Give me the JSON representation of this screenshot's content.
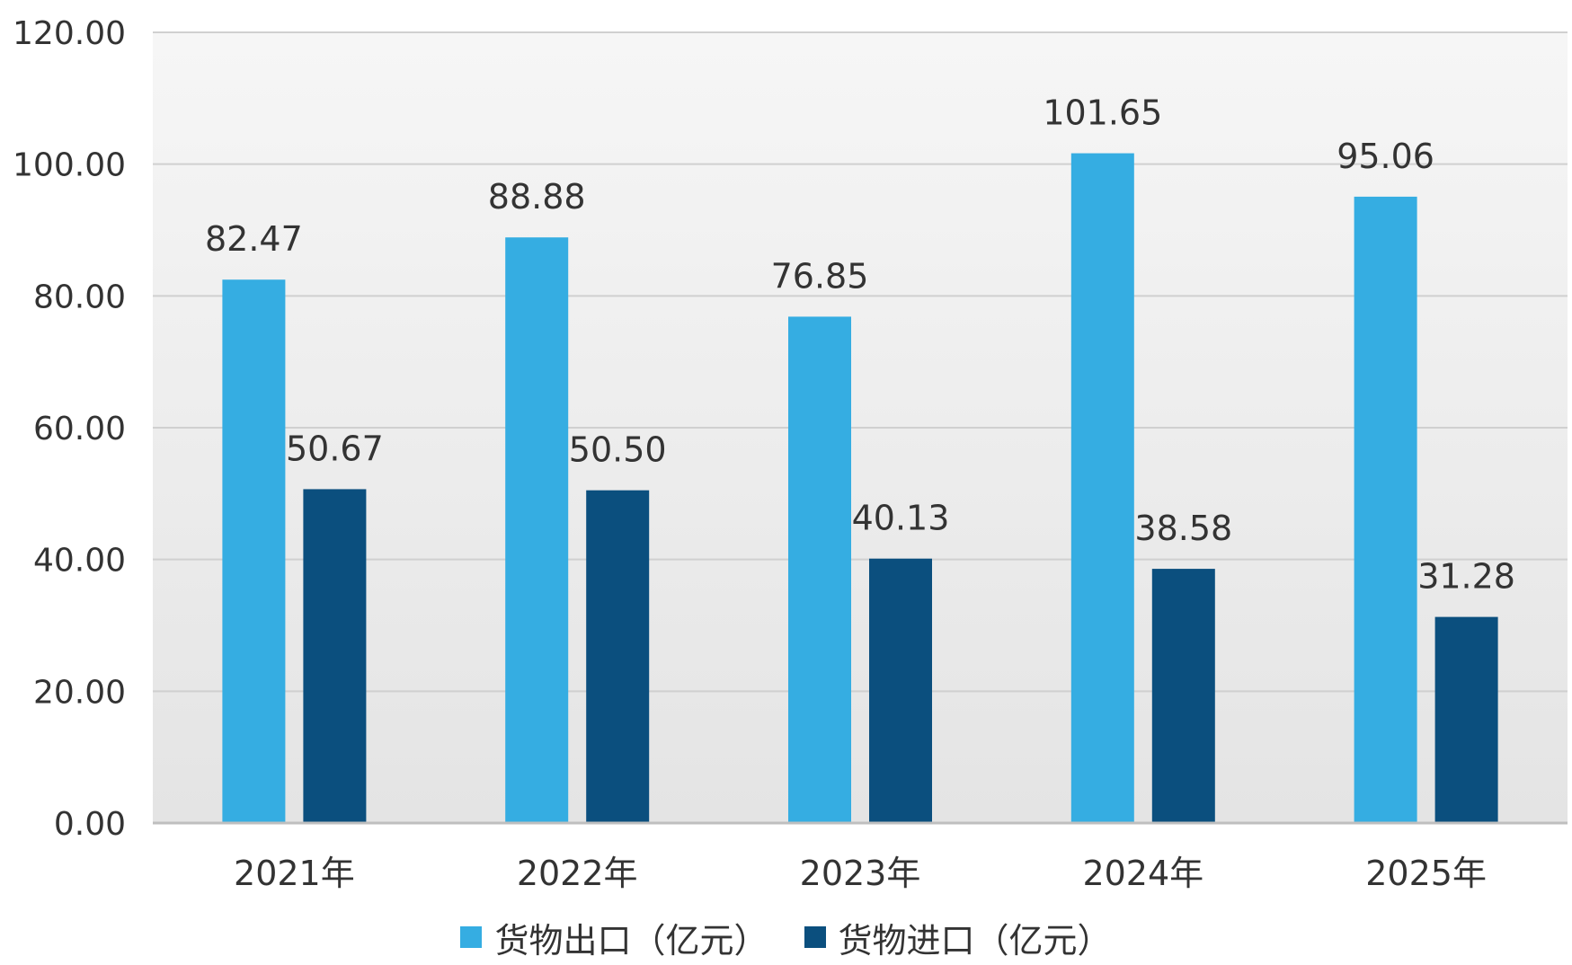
{
  "chart_data": {
    "type": "bar",
    "categories": [
      "2021年",
      "2022年",
      "2023年",
      "2024年",
      "2025年"
    ],
    "series": [
      {
        "name": "货物出口（亿元）",
        "color": "#35ADE2",
        "values": [
          82.47,
          88.88,
          76.85,
          101.65,
          95.06
        ]
      },
      {
        "name": "货物进口（亿元）",
        "color": "#0B4F7E",
        "values": [
          50.67,
          50.5,
          40.13,
          38.58,
          31.28
        ]
      }
    ],
    "data_labels": [
      [
        "82.47",
        "88.88",
        "76.85",
        "101.65",
        "95.06"
      ],
      [
        "50.67",
        "50.50",
        "40.13",
        "38.58",
        "31.28"
      ]
    ],
    "y_ticks": [
      "0.00",
      "20.00",
      "40.00",
      "60.00",
      "80.00",
      "100.00",
      "120.00"
    ],
    "ylim": [
      0,
      120
    ],
    "grid": true,
    "legend_position": "bottom"
  }
}
